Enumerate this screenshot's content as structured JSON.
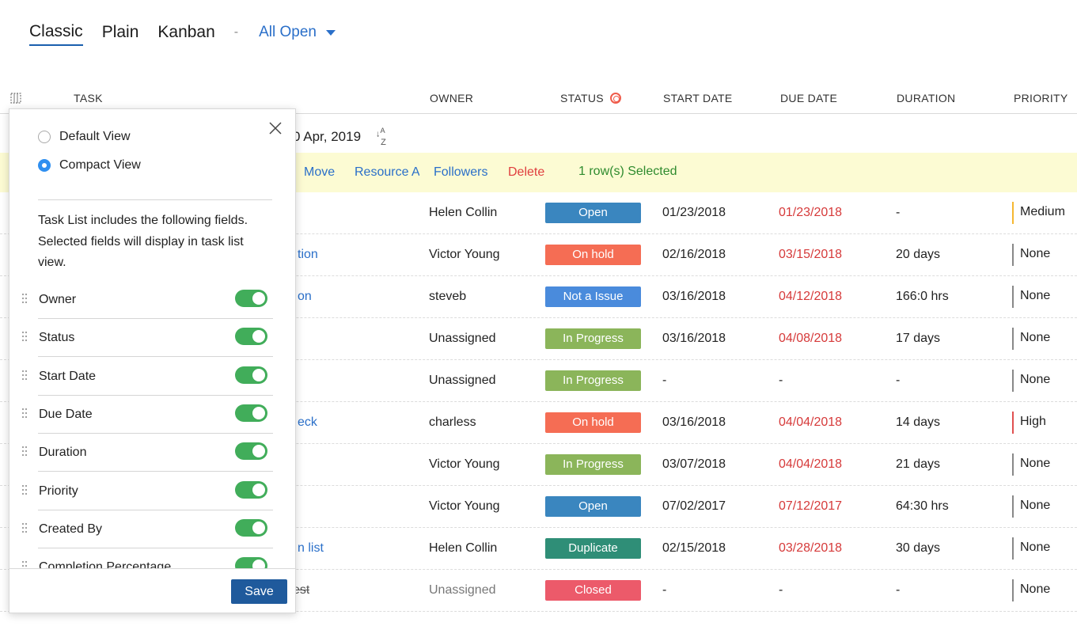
{
  "views": {
    "tabs": [
      "Classic",
      "Plain",
      "Kanban"
    ],
    "separator": "-",
    "filter": "All Open"
  },
  "header": {
    "task": "TASK",
    "owner": "OWNER",
    "status": "STATUS",
    "start_date": "START DATE",
    "due_date": "DUE DATE",
    "duration": "DURATION",
    "priority": "PRIORITY"
  },
  "group": {
    "date": "0 Apr, 2019"
  },
  "actions": {
    "move": "Move",
    "resource": "Resource A",
    "followers": "Followers",
    "delete": "Delete",
    "selected": "1  row(s)  Selected"
  },
  "rows": [
    {
      "task": "",
      "owner": "Helen Collin",
      "status": "Open",
      "status_color": "#3a86bf",
      "start": "01/23/2018",
      "due": "01/23/2018",
      "duration": "-",
      "priority": "Medium",
      "priority_color": "#f5b731"
    },
    {
      "task": "tion",
      "owner": "Victor Young",
      "status": "On hold",
      "status_color": "#f56d54",
      "start": "02/16/2018",
      "due": "03/15/2018",
      "duration": "20 days",
      "priority": "None",
      "priority_color": "#888888"
    },
    {
      "task": "on",
      "owner": "steveb",
      "status": "Not a Issue",
      "status_color": "#4a8bdc",
      "start": "03/16/2018",
      "due": "04/12/2018",
      "duration": "166:0 hrs",
      "priority": "None",
      "priority_color": "#888888"
    },
    {
      "task": "",
      "owner": "Unassigned",
      "status": "In Progress",
      "status_color": "#8bb55a",
      "start": "03/16/2018",
      "due": "04/08/2018",
      "duration": "17 days",
      "priority": "None",
      "priority_color": "#888888"
    },
    {
      "task": "",
      "owner": "Unassigned",
      "status": "In Progress",
      "status_color": "#8bb55a",
      "start": "-",
      "due": "-",
      "duration": "-",
      "priority": "None",
      "priority_color": "#888888"
    },
    {
      "task": "eck",
      "owner": "charless",
      "status": "On hold",
      "status_color": "#f56d54",
      "start": "03/16/2018",
      "due": "04/04/2018",
      "duration": "14 days",
      "priority": "High",
      "priority_color": "#e05050"
    },
    {
      "task": "",
      "owner": "Victor Young",
      "status": "In Progress",
      "status_color": "#8bb55a",
      "start": "03/07/2018",
      "due": "04/04/2018",
      "duration": "21 days",
      "priority": "None",
      "priority_color": "#888888"
    },
    {
      "task": "",
      "owner": "Victor Young",
      "status": "Open",
      "status_color": "#3a86bf",
      "start": "07/02/2017",
      "due": "07/12/2017",
      "duration": "64:30 hrs",
      "priority": "None",
      "priority_color": "#888888"
    },
    {
      "task": "n list",
      "owner": "Helen Collin",
      "status": "Duplicate",
      "status_color": "#2f8e77",
      "start": "02/15/2018",
      "due": "03/28/2018",
      "duration": "30 days",
      "priority": "None",
      "priority_color": "#888888"
    },
    {
      "task": "est",
      "owner": "Unassigned",
      "status": "Closed",
      "status_color": "#ec5a6a",
      "start": "-",
      "due": "-",
      "duration": "-",
      "priority": "None",
      "priority_color": "#888888"
    }
  ],
  "panel": {
    "default_view": "Default View",
    "compact_view": "Compact View",
    "description": "Task List includes the following fields. Selected fields will display in task list view.",
    "fields": [
      "Owner",
      "Status",
      "Start Date",
      "Due Date",
      "Duration",
      "Priority",
      "Created By",
      "Completion Percentage"
    ],
    "save": "Save"
  }
}
